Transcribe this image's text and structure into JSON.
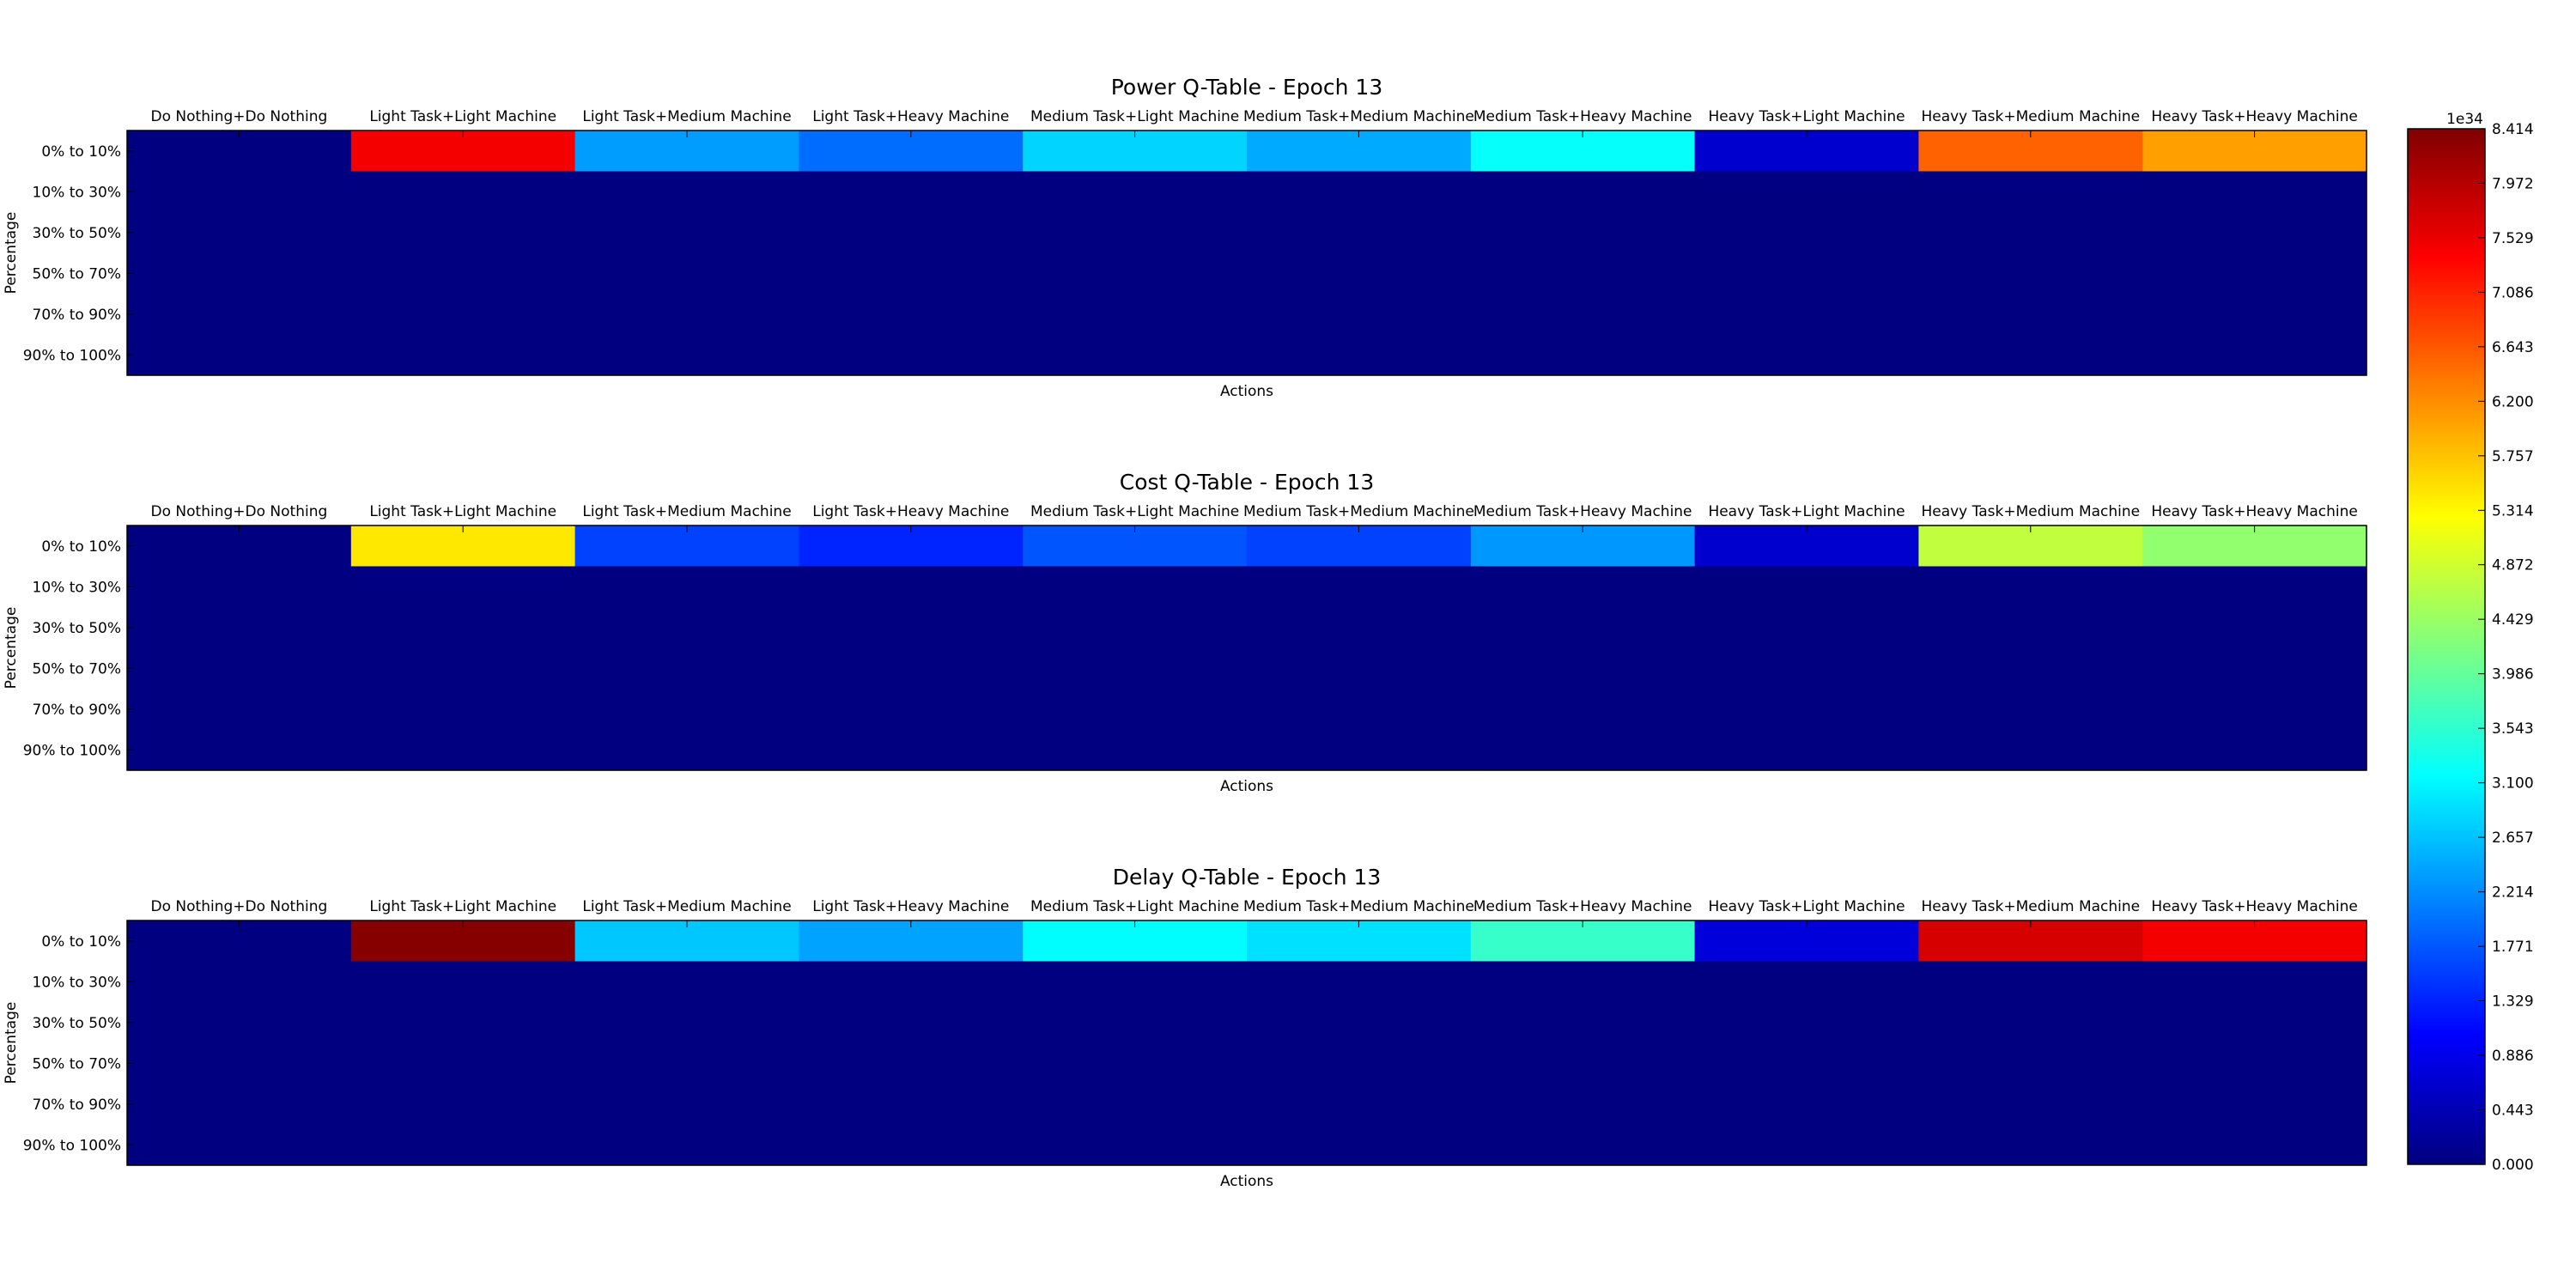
{
  "figure": {
    "colorbar": {
      "colormap": "jet",
      "min": 0.0,
      "max": 8.414,
      "exponent_label": "1e34",
      "tick_labels": [
        "0.000",
        "0.443",
        "0.886",
        "1.329",
        "1.771",
        "2.214",
        "2.657",
        "3.100",
        "3.543",
        "3.986",
        "4.429",
        "4.872",
        "5.314",
        "5.757",
        "6.200",
        "6.643",
        "7.086",
        "7.529",
        "7.972",
        "8.414"
      ]
    }
  },
  "chart_data": [
    {
      "type": "heatmap",
      "title": "Power Q-Table - Epoch 13",
      "xlabel": "Actions",
      "ylabel": "Percentage",
      "x_tick_position": "top",
      "x": [
        "Do Nothing+Do Nothing",
        "Light Task+Light Machine",
        "Light Task+Medium Machine",
        "Light Task+Heavy Machine",
        "Medium Task+Light Machine",
        "Medium Task+Medium Machine",
        "Medium Task+Heavy Machine",
        "Heavy Task+Light Machine",
        "Heavy Task+Medium Machine",
        "Heavy Task+Heavy Machine"
      ],
      "y": [
        "0% to 10%",
        "10% to 30%",
        "30% to 50%",
        "50% to 70%",
        "70% to 90%",
        "90% to 100%"
      ],
      "value_scale": "1e34",
      "vmin": 0.0,
      "vmax": 8.414,
      "values": [
        [
          0.0,
          7.45,
          2.35,
          1.95,
          2.8,
          2.45,
          3.2,
          0.65,
          6.55,
          6.05
        ],
        [
          0,
          0,
          0,
          0,
          0,
          0,
          0,
          0,
          0,
          0
        ],
        [
          0,
          0,
          0,
          0,
          0,
          0,
          0,
          0,
          0,
          0
        ],
        [
          0,
          0,
          0,
          0,
          0,
          0,
          0,
          0,
          0,
          0
        ],
        [
          0,
          0,
          0,
          0,
          0,
          0,
          0,
          0,
          0,
          0
        ],
        [
          0,
          0,
          0,
          0,
          0,
          0,
          0,
          0,
          0,
          0
        ]
      ]
    },
    {
      "type": "heatmap",
      "title": "Cost Q-Table - Epoch 13",
      "xlabel": "Actions",
      "ylabel": "Percentage",
      "x_tick_position": "top",
      "x": [
        "Do Nothing+Do Nothing",
        "Light Task+Light Machine",
        "Light Task+Medium Machine",
        "Light Task+Heavy Machine",
        "Medium Task+Light Machine",
        "Medium Task+Medium Machine",
        "Medium Task+Heavy Machine",
        "Heavy Task+Light Machine",
        "Heavy Task+Medium Machine",
        "Heavy Task+Heavy Machine"
      ],
      "y": [
        "0% to 10%",
        "10% to 30%",
        "30% to 50%",
        "50% to 70%",
        "70% to 90%",
        "90% to 100%"
      ],
      "value_scale": "1e34",
      "vmin": 0.0,
      "vmax": 8.414,
      "values": [
        [
          0.0,
          5.45,
          1.6,
          1.35,
          1.75,
          1.6,
          2.3,
          0.65,
          4.75,
          4.35
        ],
        [
          0,
          0,
          0,
          0,
          0,
          0,
          0,
          0,
          0,
          0
        ],
        [
          0,
          0,
          0,
          0,
          0,
          0,
          0,
          0,
          0,
          0
        ],
        [
          0,
          0,
          0,
          0,
          0,
          0,
          0,
          0,
          0,
          0
        ],
        [
          0,
          0,
          0,
          0,
          0,
          0,
          0,
          0,
          0,
          0
        ],
        [
          0,
          0,
          0,
          0,
          0,
          0,
          0,
          0,
          0,
          0
        ]
      ]
    },
    {
      "type": "heatmap",
      "title": "Delay Q-Table - Epoch 13",
      "xlabel": "Actions",
      "ylabel": "Percentage",
      "x_tick_position": "top",
      "x": [
        "Do Nothing+Do Nothing",
        "Light Task+Light Machine",
        "Light Task+Medium Machine",
        "Light Task+Heavy Machine",
        "Medium Task+Light Machine",
        "Medium Task+Medium Machine",
        "Medium Task+Heavy Machine",
        "Heavy Task+Light Machine",
        "Heavy Task+Medium Machine",
        "Heavy Task+Heavy Machine"
      ],
      "y": [
        "0% to 10%",
        "10% to 30%",
        "30% to 50%",
        "50% to 70%",
        "70% to 90%",
        "90% to 100%"
      ],
      "value_scale": "1e34",
      "vmin": 0.0,
      "vmax": 8.414,
      "values": [
        [
          0.0,
          8.35,
          2.7,
          2.4,
          3.15,
          2.9,
          3.6,
          0.75,
          7.7,
          7.45
        ],
        [
          0,
          0,
          0,
          0,
          0,
          0,
          0,
          0,
          0,
          0
        ],
        [
          0,
          0,
          0,
          0,
          0,
          0,
          0,
          0,
          0,
          0
        ],
        [
          0,
          0,
          0,
          0,
          0,
          0,
          0,
          0,
          0,
          0
        ],
        [
          0,
          0,
          0,
          0,
          0,
          0,
          0,
          0,
          0,
          0
        ],
        [
          0,
          0,
          0,
          0,
          0,
          0,
          0,
          0,
          0,
          0
        ]
      ]
    }
  ]
}
